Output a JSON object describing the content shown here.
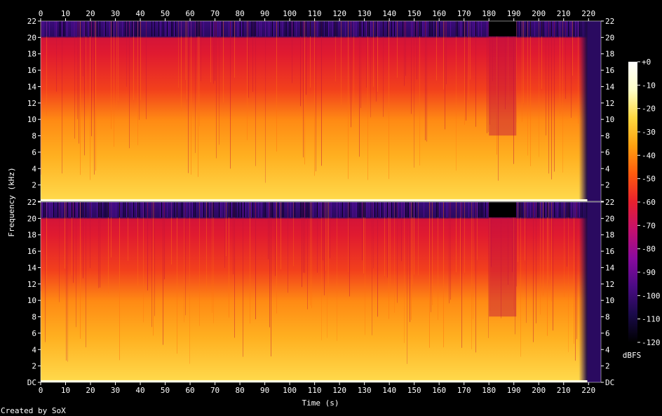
{
  "chart_data": {
    "type": "heatmap",
    "title": "",
    "xlabel": "Time (s)",
    "ylabel": "Frequency (kHz)",
    "x_ticks": [
      0,
      10,
      20,
      30,
      40,
      50,
      60,
      70,
      80,
      90,
      100,
      110,
      120,
      130,
      140,
      150,
      160,
      170,
      180,
      190,
      200,
      210,
      220
    ],
    "xlim": [
      0,
      225
    ],
    "y_ticks": [
      {
        "value": 0,
        "label": "DC"
      },
      {
        "value": 2,
        "label": "2"
      },
      {
        "value": 4,
        "label": "4"
      },
      {
        "value": 6,
        "label": "6"
      },
      {
        "value": 8,
        "label": "8"
      },
      {
        "value": 10,
        "label": "10"
      },
      {
        "value": 12,
        "label": "12"
      },
      {
        "value": 14,
        "label": "14"
      },
      {
        "value": 16,
        "label": "16"
      },
      {
        "value": 18,
        "label": "18"
      },
      {
        "value": 20,
        "label": "20"
      },
      {
        "value": 22,
        "label": "22"
      }
    ],
    "ylim": [
      0,
      22
    ],
    "channels": 2,
    "colorbar": {
      "unit": "dBFS",
      "ticks": [
        "+0",
        "-10",
        "-20",
        "-30",
        "-40",
        "-50",
        "-60",
        "-70",
        "-80",
        "-90",
        "-100",
        "-110",
        "-120"
      ],
      "range": [
        -120,
        0
      ],
      "colors": [
        "#000000",
        "#1a0a4a",
        "#4b0b85",
        "#8a0a9e",
        "#c4106e",
        "#e8202e",
        "#ff5a0e",
        "#ffa010",
        "#ffd840",
        "#ffffc8",
        "#ffffff"
      ]
    }
  },
  "footer": {
    "credit": "Created by SoX"
  }
}
